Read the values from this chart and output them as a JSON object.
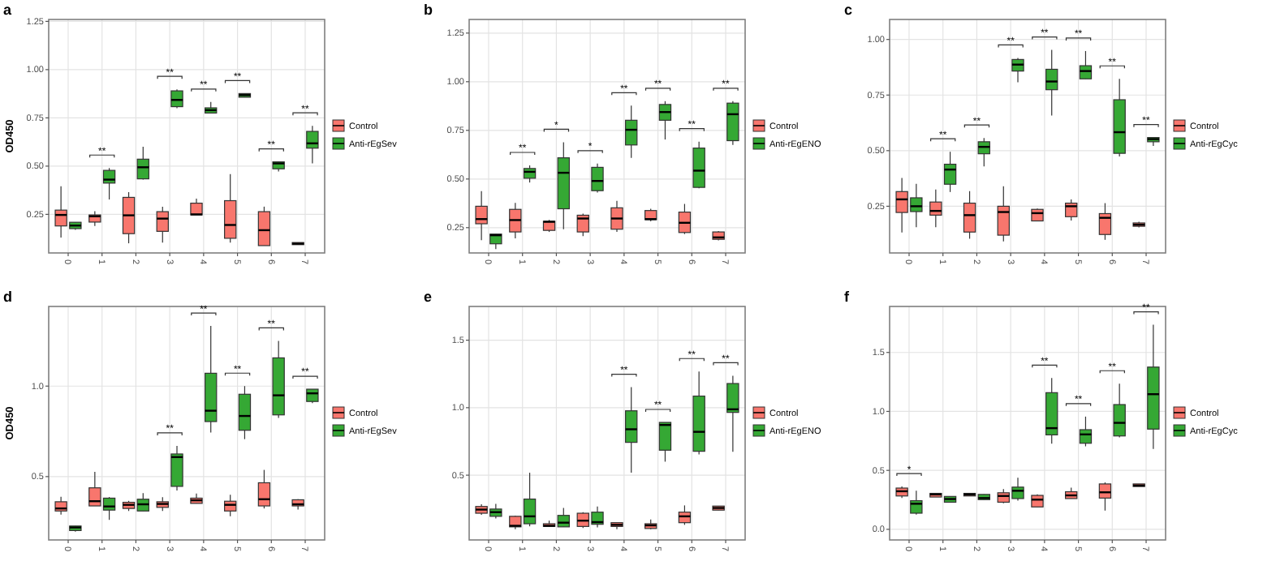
{
  "chart_data": [
    {
      "type": "box",
      "title": "a",
      "ylabel": "OD450",
      "categories": [
        "0",
        "1",
        "2",
        "3",
        "4",
        "5",
        "6",
        "7"
      ],
      "ylim": [
        0.05,
        1.26
      ],
      "yticks": [
        {
          "value": 0.25,
          "label": "0.25"
        },
        {
          "value": 0.5,
          "label": "0.50"
        },
        {
          "value": 0.75,
          "label": "0.75"
        },
        {
          "value": 1,
          "label": "1.00"
        },
        {
          "value": 1.25,
          "label": "1.25"
        }
      ],
      "grid": true,
      "legend": "right",
      "series": [
        {
          "name": "Control",
          "color": "#f8766d",
          "boxes": [
            {
              "low": 0.13,
              "q1": 0.19,
              "median": 0.247,
              "q3": 0.272,
              "high": 0.396
            },
            {
              "low": 0.19,
              "q1": 0.21,
              "median": 0.24,
              "q3": 0.247,
              "high": 0.266
            },
            {
              "low": 0.1,
              "q1": 0.15,
              "median": 0.245,
              "q3": 0.338,
              "high": 0.365
            },
            {
              "low": 0.104,
              "q1": 0.162,
              "median": 0.228,
              "q3": 0.264,
              "high": 0.29
            },
            {
              "low": 0.247,
              "q1": 0.247,
              "median": 0.25,
              "q3": 0.308,
              "high": 0.332
            },
            {
              "low": 0.104,
              "q1": 0.126,
              "median": 0.195,
              "q3": 0.321,
              "high": 0.459
            },
            {
              "low": 0.088,
              "q1": 0.088,
              "median": 0.168,
              "q3": 0.264,
              "high": 0.29
            },
            {
              "low": 0.093,
              "q1": 0.093,
              "median": 0.098,
              "q3": 0.104,
              "high": 0.104
            }
          ]
        },
        {
          "name": "Anti-rEgSev",
          "color": "#35a834",
          "boxes": [
            {
              "low": 0.17,
              "q1": 0.176,
              "median": 0.192,
              "q3": 0.209,
              "high": 0.21
            },
            {
              "low": 0.327,
              "q1": 0.412,
              "median": 0.43,
              "q3": 0.478,
              "high": 0.49
            },
            {
              "low": 0.43,
              "q1": 0.434,
              "median": 0.494,
              "q3": 0.536,
              "high": 0.6
            },
            {
              "low": 0.8,
              "q1": 0.808,
              "median": 0.843,
              "q3": 0.89,
              "high": 0.898
            },
            {
              "low": 0.775,
              "q1": 0.775,
              "median": 0.79,
              "q3": 0.802,
              "high": 0.832
            },
            {
              "low": 0.857,
              "q1": 0.857,
              "median": 0.868,
              "q3": 0.876,
              "high": 0.876
            },
            {
              "low": 0.472,
              "q1": 0.486,
              "median": 0.514,
              "q3": 0.522,
              "high": 0.522
            },
            {
              "low": 0.514,
              "q1": 0.593,
              "median": 0.618,
              "q3": 0.68,
              "high": 0.709
            }
          ]
        }
      ],
      "annotations": [
        null,
        "**",
        null,
        "**",
        "**",
        "**",
        "**",
        "**"
      ]
    },
    {
      "type": "box",
      "title": "b",
      "categories": [
        "0",
        "1",
        "2",
        "3",
        "4",
        "5",
        "6",
        "7"
      ],
      "ylim": [
        0.12,
        1.32
      ],
      "yticks": [
        {
          "value": 0.25,
          "label": "0.25"
        },
        {
          "value": 0.5,
          "label": "0.50"
        },
        {
          "value": 0.75,
          "label": "0.75"
        },
        {
          "value": 1,
          "label": "1.00"
        },
        {
          "value": 1.25,
          "label": "1.25"
        }
      ],
      "grid": true,
      "legend": "right",
      "series": [
        {
          "name": "Control",
          "color": "#f8766d",
          "boxes": [
            {
              "low": 0.186,
              "q1": 0.27,
              "median": 0.294,
              "q3": 0.36,
              "high": 0.438
            },
            {
              "low": 0.195,
              "q1": 0.228,
              "median": 0.289,
              "q3": 0.344,
              "high": 0.377
            },
            {
              "low": 0.228,
              "q1": 0.236,
              "median": 0.28,
              "q3": 0.283,
              "high": 0.29
            },
            {
              "low": 0.206,
              "q1": 0.228,
              "median": 0.297,
              "q3": 0.314,
              "high": 0.322
            },
            {
              "low": 0.228,
              "q1": 0.242,
              "median": 0.297,
              "q3": 0.352,
              "high": 0.388
            },
            {
              "low": 0.283,
              "q1": 0.291,
              "median": 0.294,
              "q3": 0.338,
              "high": 0.347
            },
            {
              "low": 0.217,
              "q1": 0.225,
              "median": 0.275,
              "q3": 0.33,
              "high": 0.372
            },
            {
              "low": 0.185,
              "q1": 0.19,
              "median": 0.2,
              "q3": 0.228,
              "high": 0.233
            }
          ]
        },
        {
          "name": "Anti-rEgENO",
          "color": "#35a834",
          "boxes": [
            {
              "low": 0.14,
              "q1": 0.167,
              "median": 0.211,
              "q3": 0.217,
              "high": 0.217
            },
            {
              "low": 0.482,
              "q1": 0.504,
              "median": 0.537,
              "q3": 0.554,
              "high": 0.57
            },
            {
              "low": 0.242,
              "q1": 0.347,
              "median": 0.532,
              "q3": 0.609,
              "high": 0.689
            },
            {
              "low": 0.43,
              "q1": 0.44,
              "median": 0.49,
              "q3": 0.56,
              "high": 0.579
            },
            {
              "low": 0.609,
              "q1": 0.675,
              "median": 0.753,
              "q3": 0.802,
              "high": 0.877
            },
            {
              "low": 0.703,
              "q1": 0.802,
              "median": 0.844,
              "q3": 0.883,
              "high": 0.9
            },
            {
              "low": 0.452,
              "q1": 0.457,
              "median": 0.543,
              "q3": 0.659,
              "high": 0.692
            },
            {
              "low": 0.675,
              "q1": 0.697,
              "median": 0.833,
              "q3": 0.89,
              "high": 0.9
            }
          ]
        }
      ],
      "annotations": [
        null,
        "**",
        "*",
        "*",
        "**",
        "**",
        "**",
        "**"
      ]
    },
    {
      "type": "box",
      "title": "c",
      "categories": [
        "0",
        "1",
        "2",
        "3",
        "4",
        "5",
        "6",
        "7"
      ],
      "ylim": [
        0.04,
        1.09
      ],
      "yticks": [
        {
          "value": 0.25,
          "label": "0.25"
        },
        {
          "value": 0.5,
          "label": "0.50"
        },
        {
          "value": 0.75,
          "label": "0.75"
        },
        {
          "value": 1,
          "label": "1.00"
        }
      ],
      "grid": true,
      "legend": "right",
      "series": [
        {
          "name": "Control",
          "color": "#f8766d",
          "boxes": [
            {
              "low": 0.132,
              "q1": 0.222,
              "median": 0.281,
              "q3": 0.316,
              "high": 0.377
            },
            {
              "low": 0.156,
              "q1": 0.21,
              "median": 0.229,
              "q3": 0.269,
              "high": 0.325
            },
            {
              "low": 0.104,
              "q1": 0.134,
              "median": 0.21,
              "q3": 0.264,
              "high": 0.318
            },
            {
              "low": 0.092,
              "q1": 0.12,
              "median": 0.224,
              "q3": 0.25,
              "high": 0.34
            },
            {
              "low": 0.184,
              "q1": 0.184,
              "median": 0.219,
              "q3": 0.236,
              "high": 0.24
            },
            {
              "low": 0.186,
              "q1": 0.203,
              "median": 0.25,
              "q3": 0.264,
              "high": 0.281
            },
            {
              "low": 0.099,
              "q1": 0.123,
              "median": 0.198,
              "q3": 0.217,
              "high": 0.264
            },
            {
              "low": 0.155,
              "q1": 0.16,
              "median": 0.167,
              "q3": 0.175,
              "high": 0.18
            }
          ]
        },
        {
          "name": "Anti-rEgCyc",
          "color": "#35a834",
          "boxes": [
            {
              "low": 0.156,
              "q1": 0.226,
              "median": 0.25,
              "q3": 0.288,
              "high": 0.351
            },
            {
              "low": 0.314,
              "q1": 0.349,
              "median": 0.415,
              "q3": 0.439,
              "high": 0.495
            },
            {
              "low": 0.429,
              "q1": 0.486,
              "median": 0.517,
              "q3": 0.54,
              "high": 0.557
            },
            {
              "low": 0.807,
              "q1": 0.858,
              "median": 0.887,
              "q3": 0.91,
              "high": 0.917
            },
            {
              "low": 0.658,
              "q1": 0.774,
              "median": 0.811,
              "q3": 0.866,
              "high": 0.953
            },
            {
              "low": 0.823,
              "q1": 0.823,
              "median": 0.858,
              "q3": 0.882,
              "high": 0.948
            },
            {
              "low": 0.474,
              "q1": 0.488,
              "median": 0.583,
              "q3": 0.729,
              "high": 0.823
            },
            {
              "low": 0.521,
              "q1": 0.54,
              "median": 0.552,
              "q3": 0.559,
              "high": 0.559
            }
          ]
        }
      ],
      "annotations": [
        null,
        "**",
        "**",
        "**",
        "**",
        "**",
        "**",
        "**"
      ]
    },
    {
      "type": "box",
      "title": "d",
      "ylabel": "OD450",
      "categories": [
        "0",
        "1",
        "2",
        "3",
        "4",
        "5",
        "6",
        "7"
      ],
      "ylim": [
        0.15,
        1.44
      ],
      "yticks": [
        {
          "value": 0.5,
          "label": "0.5"
        },
        {
          "value": 1,
          "label": "1.0"
        }
      ],
      "grid": true,
      "legend": "right",
      "series": [
        {
          "name": "Control",
          "color": "#f8766d",
          "boxes": [
            {
              "low": 0.29,
              "q1": 0.31,
              "median": 0.324,
              "q3": 0.361,
              "high": 0.389
            },
            {
              "low": 0.338,
              "q1": 0.338,
              "median": 0.364,
              "q3": 0.438,
              "high": 0.526
            },
            {
              "low": 0.31,
              "q1": 0.324,
              "median": 0.344,
              "q3": 0.358,
              "high": 0.366
            },
            {
              "low": 0.31,
              "q1": 0.33,
              "median": 0.349,
              "q3": 0.361,
              "high": 0.386
            },
            {
              "low": 0.352,
              "q1": 0.352,
              "median": 0.369,
              "q3": 0.381,
              "high": 0.406
            },
            {
              "low": 0.281,
              "q1": 0.31,
              "median": 0.344,
              "q3": 0.364,
              "high": 0.4
            },
            {
              "low": 0.324,
              "q1": 0.338,
              "median": 0.375,
              "q3": 0.466,
              "high": 0.537
            },
            {
              "low": 0.318,
              "q1": 0.338,
              "median": 0.347,
              "q3": 0.372,
              "high": 0.375
            }
          ]
        },
        {
          "name": "Anti-rEgSev",
          "color": "#35a834",
          "boxes": [
            {
              "low": 0.196,
              "q1": 0.202,
              "median": 0.219,
              "q3": 0.227,
              "high": 0.227
            },
            {
              "low": 0.261,
              "q1": 0.315,
              "median": 0.335,
              "q3": 0.381,
              "high": 0.387
            },
            {
              "low": 0.31,
              "q1": 0.31,
              "median": 0.347,
              "q3": 0.375,
              "high": 0.409
            },
            {
              "low": 0.423,
              "q1": 0.446,
              "median": 0.608,
              "q3": 0.625,
              "high": 0.67
            },
            {
              "low": 0.744,
              "q1": 0.804,
              "median": 0.864,
              "q3": 1.071,
              "high": 1.332
            },
            {
              "low": 0.707,
              "q1": 0.756,
              "median": 0.835,
              "q3": 0.955,
              "high": 1.0
            },
            {
              "low": 0.824,
              "q1": 0.841,
              "median": 0.949,
              "q3": 1.156,
              "high": 1.25
            },
            {
              "low": 0.906,
              "q1": 0.915,
              "median": 0.96,
              "q3": 0.983,
              "high": 0.983
            }
          ]
        }
      ],
      "annotations": [
        null,
        null,
        null,
        "**",
        "**",
        "**",
        "**",
        "**"
      ]
    },
    {
      "type": "box",
      "title": "e",
      "categories": [
        "0",
        "1",
        "2",
        "3",
        "4",
        "5",
        "6",
        "7"
      ],
      "ylim": [
        0.02,
        1.75
      ],
      "yticks": [
        {
          "value": 0.5,
          "label": "0.5"
        },
        {
          "value": 1,
          "label": "1.0"
        },
        {
          "value": 1.5,
          "label": "1.5"
        }
      ],
      "grid": true,
      "legend": "right",
      "series": [
        {
          "name": "Control",
          "color": "#f8766d",
          "boxes": [
            {
              "low": 0.206,
              "q1": 0.218,
              "median": 0.245,
              "q3": 0.268,
              "high": 0.284
            },
            {
              "low": 0.1,
              "q1": 0.117,
              "median": 0.125,
              "q3": 0.195,
              "high": 0.2
            },
            {
              "low": 0.12,
              "q1": 0.12,
              "median": 0.125,
              "q3": 0.14,
              "high": 0.163
            },
            {
              "low": 0.109,
              "q1": 0.12,
              "median": 0.163,
              "q3": 0.218,
              "high": 0.226
            },
            {
              "low": 0.1,
              "q1": 0.12,
              "median": 0.132,
              "q3": 0.148,
              "high": 0.148
            },
            {
              "low": 0.1,
              "q1": 0.105,
              "median": 0.128,
              "q3": 0.14,
              "high": 0.171
            },
            {
              "low": 0.132,
              "q1": 0.148,
              "median": 0.195,
              "q3": 0.226,
              "high": 0.276
            },
            {
              "low": 0.241,
              "q1": 0.241,
              "median": 0.257,
              "q3": 0.271,
              "high": 0.271
            }
          ]
        },
        {
          "name": "Anti-rEgENO",
          "color": "#35a834",
          "boxes": [
            {
              "low": 0.179,
              "q1": 0.195,
              "median": 0.226,
              "q3": 0.249,
              "high": 0.288
            },
            {
              "low": 0.121,
              "q1": 0.14,
              "median": 0.195,
              "q3": 0.323,
              "high": 0.518
            },
            {
              "low": 0.117,
              "q1": 0.117,
              "median": 0.148,
              "q3": 0.202,
              "high": 0.257
            },
            {
              "low": 0.113,
              "q1": 0.136,
              "median": 0.152,
              "q3": 0.226,
              "high": 0.268
            },
            {
              "low": 0.518,
              "q1": 0.743,
              "median": 0.84,
              "q3": 0.977,
              "high": 1.152
            },
            {
              "low": 0.6,
              "q1": 0.685,
              "median": 0.872,
              "q3": 0.891,
              "high": 0.891
            },
            {
              "low": 0.654,
              "q1": 0.677,
              "median": 0.821,
              "q3": 1.086,
              "high": 1.268
            },
            {
              "low": 0.673,
              "q1": 0.965,
              "median": 0.988,
              "q3": 1.179,
              "high": 1.237
            }
          ]
        }
      ],
      "annotations": [
        null,
        null,
        null,
        null,
        "**",
        "**",
        "**",
        "**"
      ]
    },
    {
      "type": "box",
      "title": "f",
      "categories": [
        "0",
        "1",
        "2",
        "3",
        "4",
        "5",
        "6",
        "7"
      ],
      "ylim": [
        -0.09,
        1.89
      ],
      "yticks": [
        {
          "value": 0,
          "label": "0.0"
        },
        {
          "value": 0.5,
          "label": "0.5"
        },
        {
          "value": 1,
          "label": "1.0"
        },
        {
          "value": 1.5,
          "label": "1.5"
        }
      ],
      "grid": true,
      "legend": "right",
      "series": [
        {
          "name": "Control",
          "color": "#f8766d",
          "boxes": [
            {
              "low": 0.265,
              "q1": 0.283,
              "median": 0.323,
              "q3": 0.35,
              "high": 0.363
            },
            {
              "low": 0.274,
              "q1": 0.274,
              "median": 0.296,
              "q3": 0.305,
              "high": 0.305
            },
            {
              "low": 0.283,
              "q1": 0.283,
              "median": 0.296,
              "q3": 0.305,
              "high": 0.305
            },
            {
              "low": 0.221,
              "q1": 0.23,
              "median": 0.283,
              "q3": 0.31,
              "high": 0.341
            },
            {
              "low": 0.19,
              "q1": 0.19,
              "median": 0.252,
              "q3": 0.288,
              "high": 0.296
            },
            {
              "low": 0.261,
              "q1": 0.261,
              "median": 0.288,
              "q3": 0.319,
              "high": 0.354
            },
            {
              "low": 0.159,
              "q1": 0.265,
              "median": 0.314,
              "q3": 0.385,
              "high": 0.398
            },
            {
              "low": 0.363,
              "q1": 0.363,
              "median": 0.372,
              "q3": 0.385,
              "high": 0.385
            }
          ]
        },
        {
          "name": "Anti-rEgCyc",
          "color": "#35a834",
          "boxes": [
            {
              "low": 0.124,
              "q1": 0.137,
              "median": 0.217,
              "q3": 0.243,
              "high": 0.327
            },
            {
              "low": 0.23,
              "q1": 0.23,
              "median": 0.257,
              "q3": 0.279,
              "high": 0.279
            },
            {
              "low": 0.252,
              "q1": 0.252,
              "median": 0.265,
              "q3": 0.296,
              "high": 0.296
            },
            {
              "low": 0.243,
              "q1": 0.261,
              "median": 0.327,
              "q3": 0.358,
              "high": 0.438
            },
            {
              "low": 0.726,
              "q1": 0.801,
              "median": 0.858,
              "q3": 1.159,
              "high": 1.283
            },
            {
              "low": 0.704,
              "q1": 0.73,
              "median": 0.805,
              "q3": 0.845,
              "high": 0.956
            },
            {
              "low": 0.779,
              "q1": 0.792,
              "median": 0.903,
              "q3": 1.058,
              "high": 1.235
            },
            {
              "low": 0.681,
              "q1": 0.85,
              "median": 1.146,
              "q3": 1.376,
              "high": 1.735
            }
          ]
        }
      ],
      "annotations": [
        "*",
        null,
        null,
        null,
        "**",
        "**",
        "**",
        "**"
      ]
    }
  ]
}
